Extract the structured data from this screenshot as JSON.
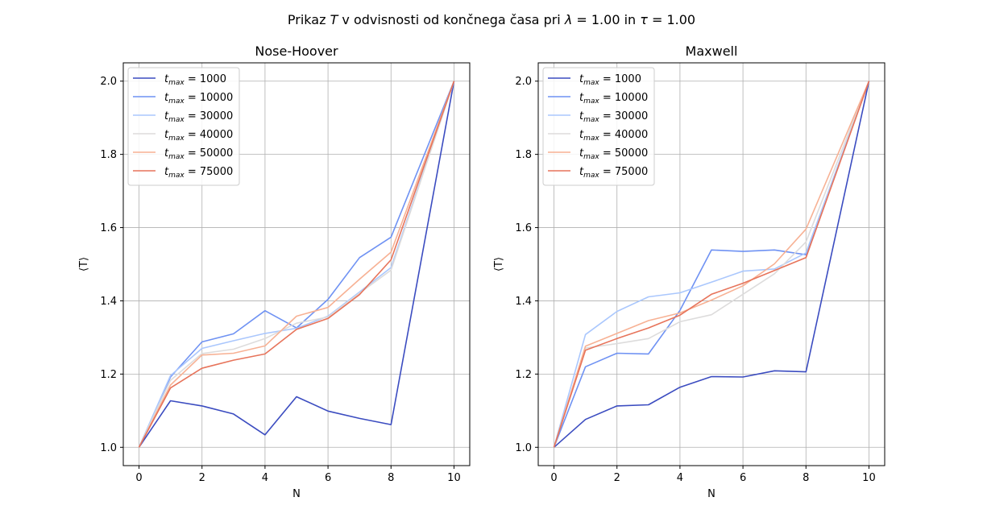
{
  "figure": {
    "suptitle_pre": "Prikaz ",
    "suptitle_T": "T",
    "suptitle_mid": " v odvisnosti od končnega časa pri ",
    "suptitle_lambda": "λ",
    "suptitle_eq1": " = 1.00 in ",
    "suptitle_tau": "τ",
    "suptitle_eq2": " = 1.00"
  },
  "legend_label_parts": {
    "var": "t",
    "sub": "max",
    "eq": " = "
  },
  "series_colors": [
    "#3b4cc0",
    "#6f92f3",
    "#aac7fd",
    "#dddcdc",
    "#f7b194",
    "#e7745b"
  ],
  "chart_data": [
    {
      "type": "line",
      "title": "Nose-Hoover",
      "xlabel": "N",
      "ylabel": "⟨T⟩",
      "xlim": [
        -0.5,
        10.5
      ],
      "ylim": [
        0.95,
        2.05
      ],
      "xticks": [
        "0",
        "2",
        "4",
        "6",
        "8",
        "10"
      ],
      "yticks": [
        "1.0",
        "1.2",
        "1.4",
        "1.6",
        "1.8",
        "2.0"
      ],
      "grid": true,
      "legend_position": "upper-left",
      "x": [
        0,
        1,
        2,
        3,
        4,
        5,
        6,
        7,
        8,
        10
      ],
      "series": [
        {
          "name": "1000",
          "values": [
            1.0,
            1.127,
            1.113,
            1.091,
            1.034,
            1.138,
            1.099,
            1.079,
            1.062,
            2.0
          ]
        },
        {
          "name": "10000",
          "values": [
            1.0,
            1.192,
            1.288,
            1.31,
            1.373,
            1.326,
            1.404,
            1.518,
            1.574,
            2.0
          ]
        },
        {
          "name": "30000",
          "values": [
            1.0,
            1.196,
            1.27,
            1.291,
            1.311,
            1.325,
            1.358,
            1.424,
            1.491,
            2.0
          ]
        },
        {
          "name": "40000",
          "values": [
            1.0,
            1.183,
            1.256,
            1.268,
            1.297,
            1.339,
            1.356,
            1.421,
            1.484,
            2.0
          ]
        },
        {
          "name": "50000",
          "values": [
            1.0,
            1.17,
            1.252,
            1.257,
            1.277,
            1.358,
            1.382,
            1.459,
            1.533,
            2.0
          ]
        },
        {
          "name": "75000",
          "values": [
            1.0,
            1.162,
            1.216,
            1.238,
            1.255,
            1.322,
            1.352,
            1.417,
            1.512,
            2.0
          ]
        }
      ]
    },
    {
      "type": "line",
      "title": "Maxwell",
      "xlabel": "N",
      "ylabel": "⟨T⟩",
      "xlim": [
        -0.5,
        10.5
      ],
      "ylim": [
        0.95,
        2.05
      ],
      "xticks": [
        "0",
        "2",
        "4",
        "6",
        "8",
        "10"
      ],
      "yticks": [
        "1.0",
        "1.2",
        "1.4",
        "1.6",
        "1.8",
        "2.0"
      ],
      "grid": true,
      "legend_position": "upper-left",
      "x": [
        0,
        1,
        2,
        3,
        4,
        5,
        6,
        7,
        8,
        10
      ],
      "series": [
        {
          "name": "1000",
          "values": [
            1.0,
            1.076,
            1.113,
            1.116,
            1.164,
            1.193,
            1.192,
            1.209,
            1.206,
            2.0
          ]
        },
        {
          "name": "10000",
          "values": [
            1.0,
            1.22,
            1.257,
            1.255,
            1.374,
            1.539,
            1.535,
            1.539,
            1.526,
            2.0
          ]
        },
        {
          "name": "30000",
          "values": [
            1.0,
            1.308,
            1.371,
            1.411,
            1.422,
            1.451,
            1.481,
            1.487,
            1.531,
            2.0
          ]
        },
        {
          "name": "40000",
          "values": [
            1.0,
            1.271,
            1.283,
            1.297,
            1.343,
            1.362,
            1.418,
            1.474,
            1.561,
            2.0
          ]
        },
        {
          "name": "50000",
          "values": [
            1.0,
            1.276,
            1.311,
            1.346,
            1.367,
            1.402,
            1.441,
            1.501,
            1.596,
            2.0
          ]
        },
        {
          "name": "75000",
          "values": [
            1.0,
            1.265,
            1.297,
            1.326,
            1.361,
            1.418,
            1.448,
            1.483,
            1.518,
            2.0
          ]
        }
      ]
    }
  ]
}
